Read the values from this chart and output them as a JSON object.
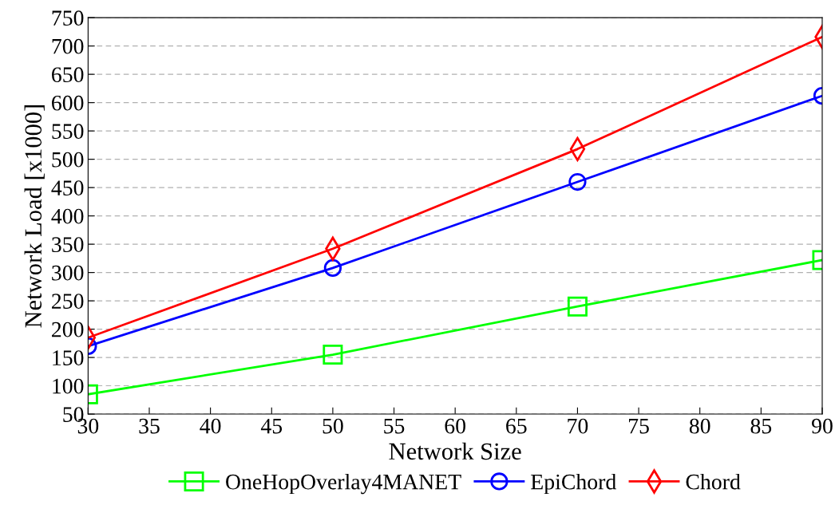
{
  "chart_data": {
    "type": "line",
    "xlabel": "Network Size",
    "ylabel": "Network Load [x1000]",
    "x": [
      30,
      50,
      70,
      90
    ],
    "series": [
      {
        "name": "OneHopOverlay4MANET",
        "color": "#00ff00",
        "marker": "square",
        "values": [
          85,
          155,
          240,
          322
        ]
      },
      {
        "name": "EpiChord",
        "color": "#0000ff",
        "marker": "circle",
        "values": [
          170,
          308,
          460,
          612
        ]
      },
      {
        "name": "Chord",
        "color": "#ff0000",
        "marker": "diamond",
        "values": [
          185,
          342,
          518,
          716
        ]
      }
    ],
    "xlim": [
      30,
      90
    ],
    "xticks": [
      30,
      35,
      40,
      45,
      50,
      55,
      60,
      65,
      70,
      75,
      80,
      85,
      90
    ],
    "ylim": [
      50,
      750
    ],
    "yticks": [
      50,
      100,
      150,
      200,
      250,
      300,
      350,
      400,
      450,
      500,
      550,
      600,
      650,
      700,
      750
    ],
    "grid": "y",
    "legend": "bottom"
  }
}
